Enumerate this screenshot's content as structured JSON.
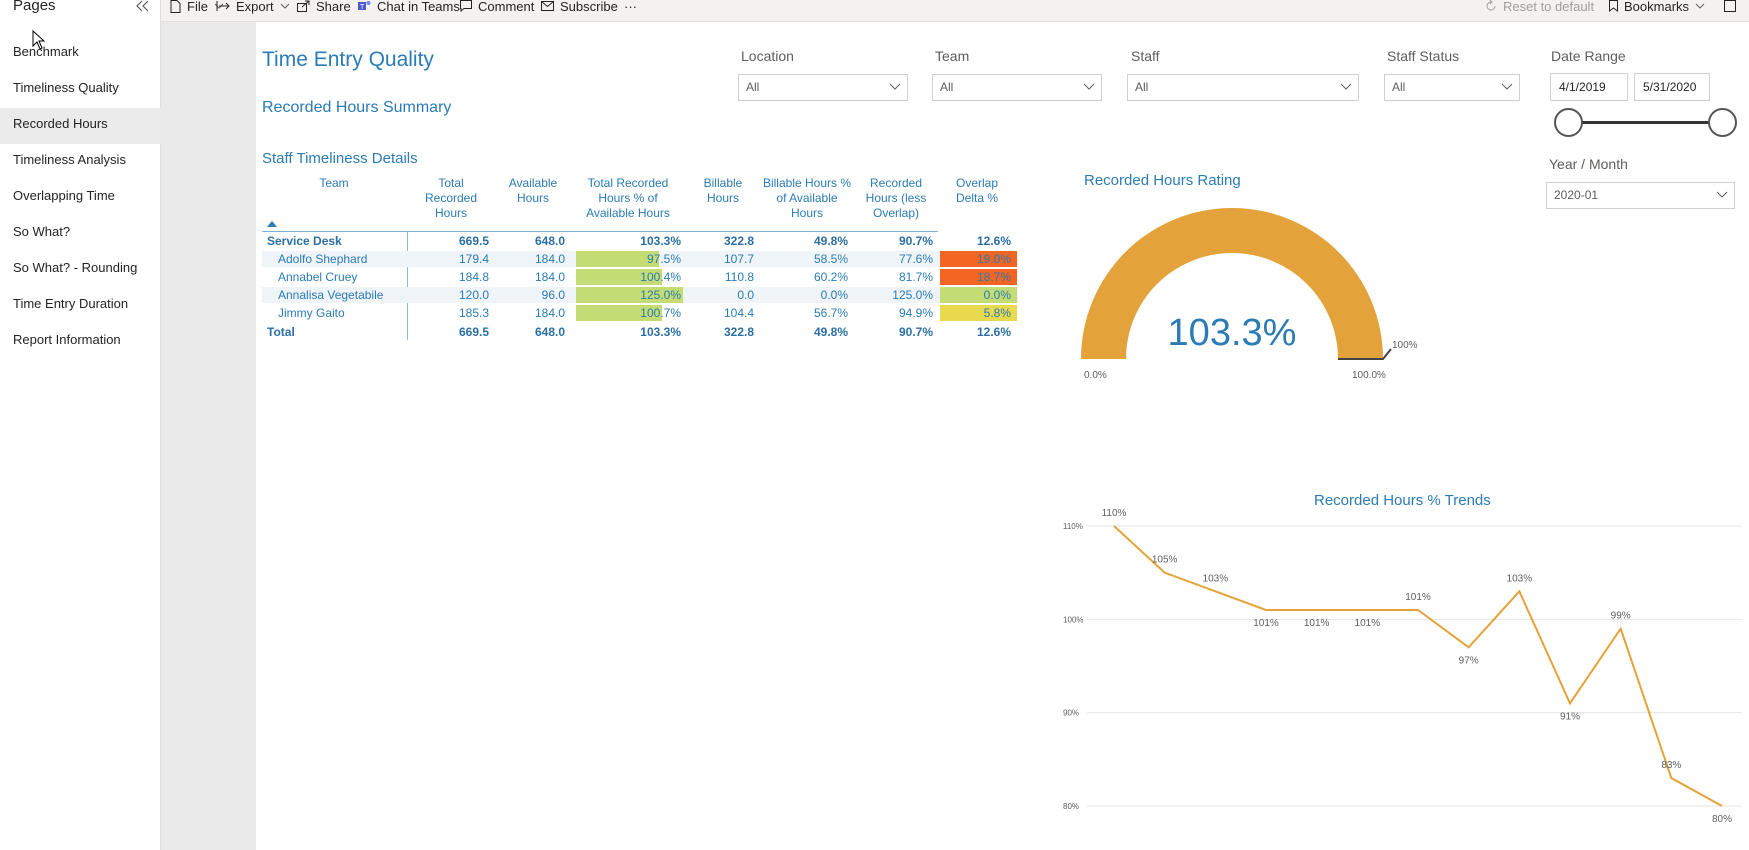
{
  "sidebar": {
    "title": "Pages",
    "items": [
      {
        "label": "Benchmark"
      },
      {
        "label": "Timeliness Quality"
      },
      {
        "label": "Recorded Hours"
      },
      {
        "label": "Timeliness Analysis"
      },
      {
        "label": "Overlapping Time"
      },
      {
        "label": "So What?"
      },
      {
        "label": "So What? - Rounding"
      },
      {
        "label": "Time Entry Duration"
      },
      {
        "label": "Report Information"
      }
    ],
    "active_index": 2
  },
  "toolbar": {
    "file": "File",
    "export": "Export",
    "share": "Share",
    "chat": "Chat in Teams",
    "comment": "Comment",
    "subscribe": "Subscribe",
    "more": "···",
    "reset": "Reset to default",
    "bookmarks": "Bookmarks"
  },
  "report": {
    "title": "Time Entry Quality",
    "summary": "Recorded Hours Summary",
    "details_title": "Staff Timeliness Details"
  },
  "filters": {
    "location": {
      "label": "Location",
      "value": "All"
    },
    "team": {
      "label": "Team",
      "value": "All"
    },
    "staff": {
      "label": "Staff",
      "value": "All"
    },
    "staff_status": {
      "label": "Staff Status",
      "value": "All"
    },
    "date_range": {
      "label": "Date Range",
      "start": "4/1/2019",
      "end": "5/31/2020"
    },
    "year_month": {
      "label": "Year / Month",
      "value": "2020-01"
    }
  },
  "matrix": {
    "headers": [
      "Team",
      "Total Recorded Hours",
      "Available Hours",
      "Total Recorded Hours % of Available Hours",
      "Billable Hours",
      "Billable Hours % of Available Hours",
      "Recorded Hours (less Overlap)",
      "Overlap Delta %"
    ],
    "group": {
      "name": "Service Desk",
      "values": [
        "669.5",
        "648.0",
        "103.3%",
        "322.8",
        "49.8%",
        "90.7%",
        "12.6%"
      ]
    },
    "rows": [
      {
        "name": "Adolfo Shephard",
        "values": [
          "179.4",
          "184.0",
          "97.5%",
          "107.7",
          "58.5%",
          "77.6%",
          "19.0%"
        ],
        "pct": 0.975,
        "heat": "#f26522"
      },
      {
        "name": "Annabel Cruey",
        "values": [
          "184.8",
          "184.0",
          "100.4%",
          "110.8",
          "60.2%",
          "81.7%",
          "18.7%"
        ],
        "pct": 1.004,
        "heat": "#f26522"
      },
      {
        "name": "Annalisa Vegetabile",
        "values": [
          "120.0",
          "96.0",
          "125.0%",
          "0.0",
          "0.0%",
          "125.0%",
          "0.0%"
        ],
        "pct": 1.25,
        "heat": "#c3dc74"
      },
      {
        "name": "Jimmy Gaito",
        "values": [
          "185.3",
          "184.0",
          "100.7%",
          "104.4",
          "56.7%",
          "94.9%",
          "5.8%"
        ],
        "pct": 1.007,
        "heat": "#e8d94e"
      }
    ],
    "total": {
      "name": "Total",
      "values": [
        "669.5",
        "648.0",
        "103.3%",
        "322.8",
        "49.8%",
        "90.7%",
        "12.6%"
      ]
    }
  },
  "gauge": {
    "title": "Recorded Hours Rating",
    "value_label": "103.3%",
    "value": 1.033,
    "min_label": "0.0%",
    "max_label": "100.0%",
    "target_label": "100%",
    "color": "#e3a33a"
  },
  "chart_data": {
    "type": "line",
    "title": "Recorded Hours % Trends",
    "y_ticks": [
      "110%",
      "100%",
      "90%",
      "80%"
    ],
    "ylim": [
      80,
      110
    ],
    "values": [
      110,
      105,
      103,
      101,
      101,
      101,
      101,
      97,
      103,
      91,
      99,
      83,
      80
    ],
    "labels": [
      "110%",
      "105%",
      "103%",
      "101%",
      "101%",
      "101%",
      "101%",
      "97%",
      "103%",
      "91%",
      "99%",
      "83%",
      "80%"
    ],
    "color": "#e3a33a",
    "grid": true
  }
}
